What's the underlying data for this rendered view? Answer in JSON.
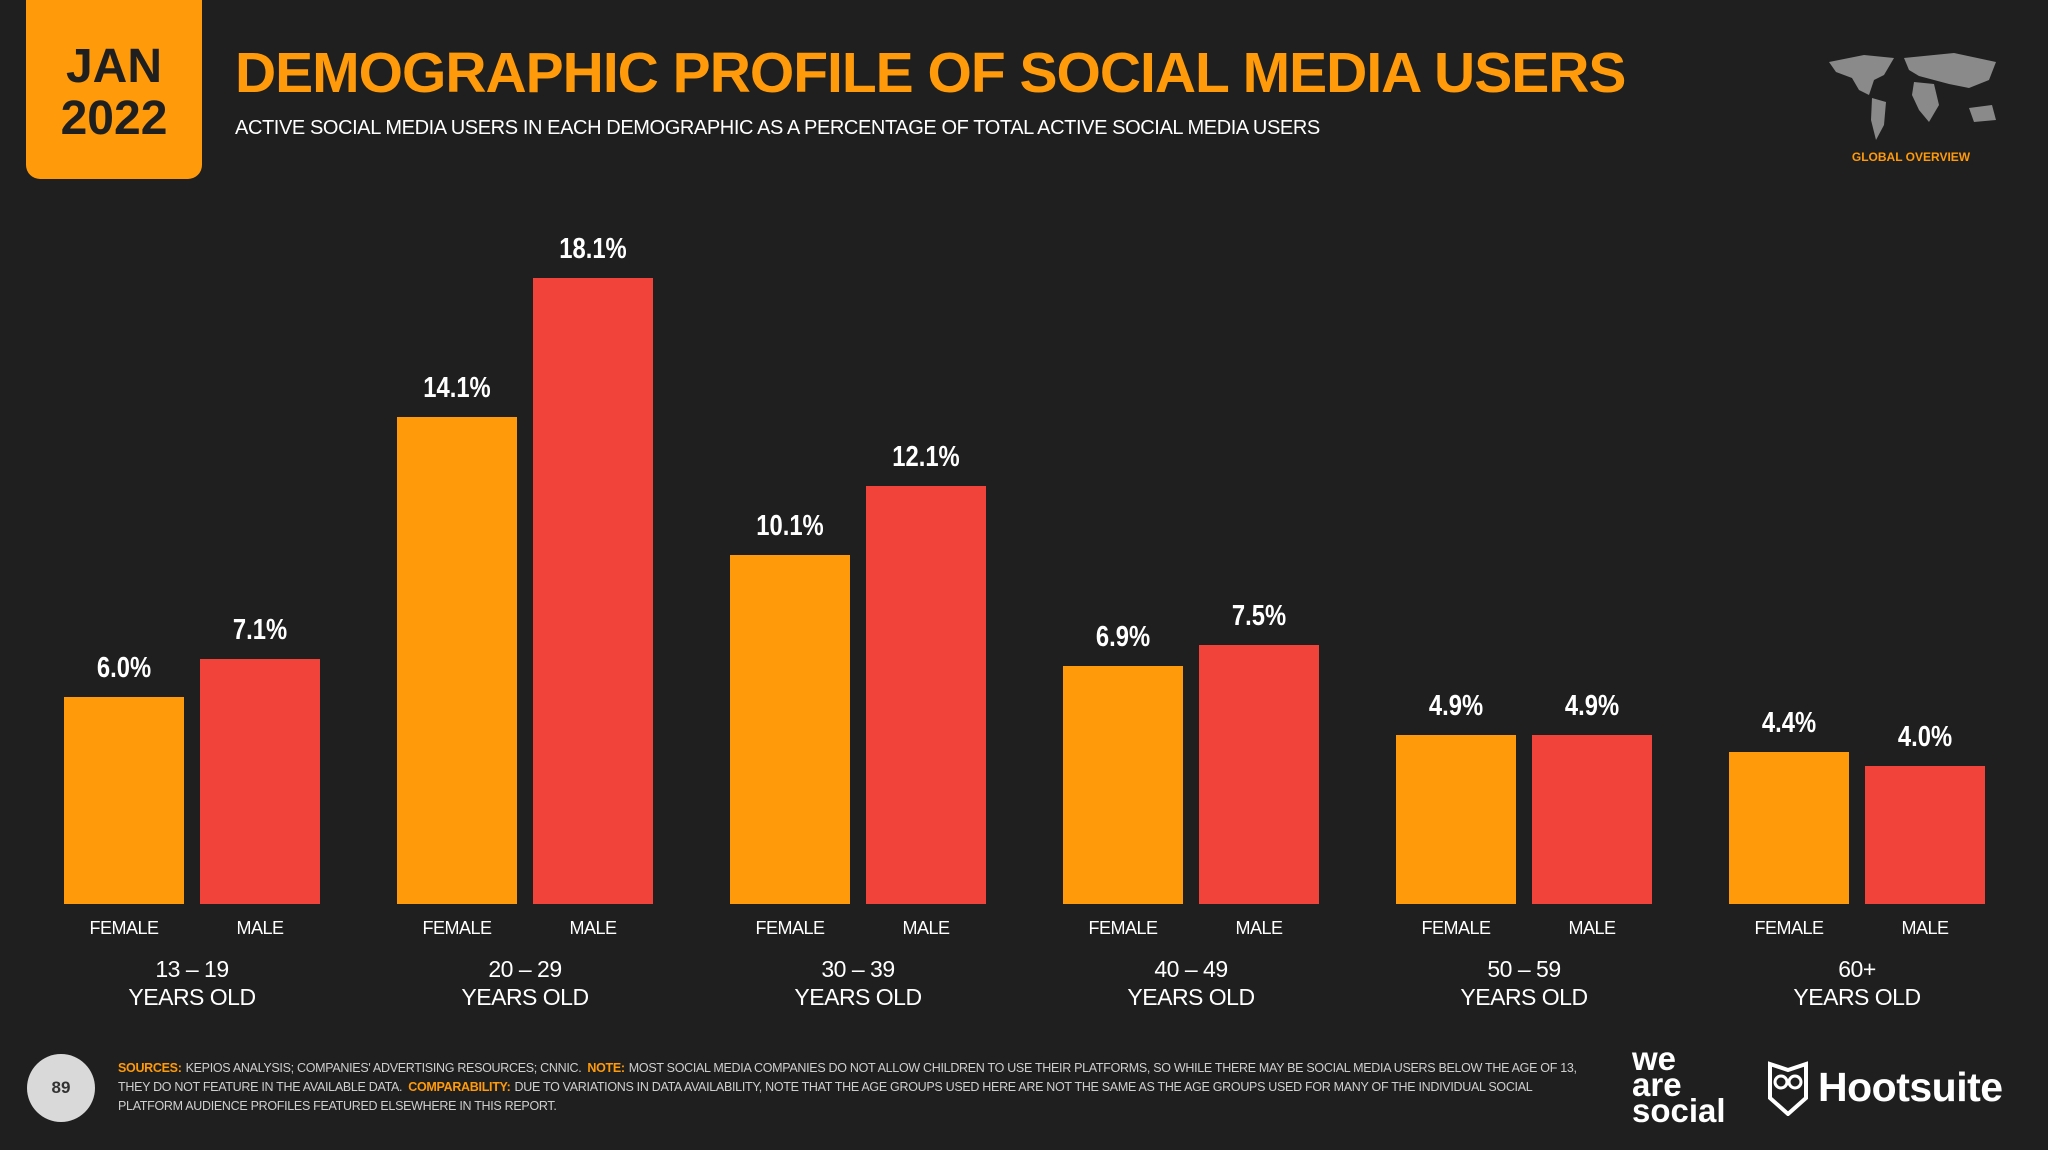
{
  "header": {
    "date": "JAN\n2022",
    "badge": "GLOBAL OVERVIEW"
  },
  "chart_data": {
    "type": "bar",
    "title": "DEMOGRAPHIC PROFILE OF SOCIAL MEDIA USERS",
    "subtitle": "ACTIVE SOCIAL MEDIA USERS IN EACH DEMOGRAPHIC AS A PERCENTAGE OF TOTAL ACTIVE SOCIAL MEDIA USERS",
    "categories": [
      "13 – 19\nYEARS OLD",
      "20 – 29\nYEARS OLD",
      "30 – 39\nYEARS OLD",
      "40 – 49\nYEARS OLD",
      "50 – 59\nYEARS OLD",
      "60+\nYEARS OLD"
    ],
    "series": [
      {
        "name": "FEMALE",
        "color": "#FF9A0A",
        "values": [
          6.0,
          14.1,
          10.1,
          6.9,
          4.9,
          4.4
        ],
        "value_labels": [
          "6.0%",
          "14.1%",
          "10.1%",
          "6.9%",
          "4.9%",
          "4.4%"
        ]
      },
      {
        "name": "MALE",
        "color": "#F2433A",
        "values": [
          7.1,
          18.1,
          12.1,
          7.5,
          4.9,
          4.0
        ],
        "value_labels": [
          "7.1%",
          "18.1%",
          "12.1%",
          "7.5%",
          "4.9%",
          "4.0%"
        ]
      }
    ]
  },
  "footer": {
    "page": "89",
    "notes": [
      {
        "label": "SOURCES:",
        "text": "KEPIOS ANALYSIS; COMPANIES' ADVERTISING RESOURCES; CNNIC."
      },
      {
        "label": "NOTE:",
        "text": "MOST SOCIAL MEDIA COMPANIES DO NOT ALLOW CHILDREN TO USE THEIR PLATFORMS, SO WHILE THERE MAY BE SOCIAL MEDIA USERS BELOW THE AGE OF 13, THEY DO NOT FEATURE IN THE AVAILABLE DATA."
      },
      {
        "label": "COMPARABILITY:",
        "text": "DUE TO VARIATIONS IN DATA AVAILABILITY, NOTE THAT THE AGE GROUPS USED HERE ARE NOT THE SAME AS THE AGE GROUPS USED FOR MANY OF THE INDIVIDUAL SOCIAL PLATFORM AUDIENCE PROFILES FEATURED ELSEWHERE IN THIS REPORT."
      }
    ],
    "logos": [
      "we\nare\nsocial",
      "Hootsuite"
    ]
  }
}
